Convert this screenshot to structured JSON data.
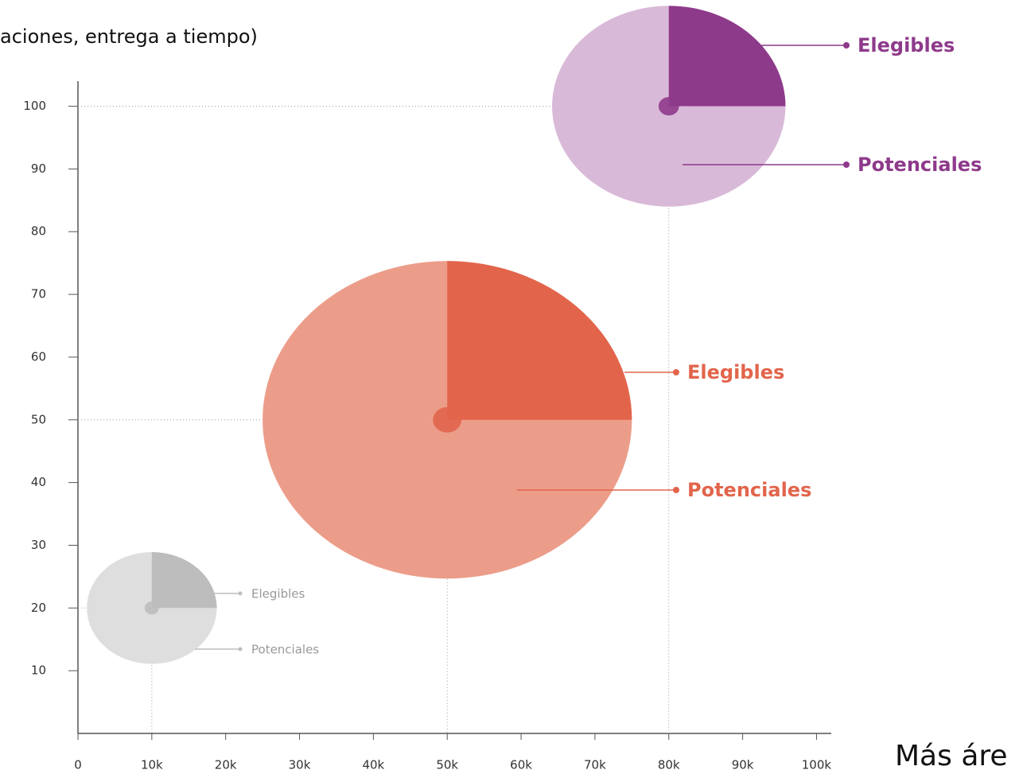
{
  "subtitle": "aciones, entrega a tiempo)",
  "footer": "Más áre",
  "chart_data": {
    "type": "bubble-pie",
    "xlim": [
      0,
      102000
    ],
    "ylim": [
      0,
      104
    ],
    "xticks": [
      0,
      {
        "value": 10000,
        "label": "10k"
      },
      {
        "value": 20000,
        "label": "20k"
      },
      {
        "value": 30000,
        "label": "30k"
      },
      {
        "value": 40000,
        "label": "40k"
      },
      {
        "value": 50000,
        "label": "50k"
      },
      {
        "value": 60000,
        "label": "60k"
      },
      {
        "value": 70000,
        "label": "70k"
      },
      {
        "value": 80000,
        "label": "80k"
      },
      {
        "value": 90000,
        "label": "90k"
      },
      {
        "value": 100000,
        "label": "100k"
      }
    ],
    "yticks": [
      10,
      20,
      30,
      40,
      50,
      60,
      70,
      80,
      90,
      100
    ],
    "bubbles": [
      {
        "x": 10000,
        "y": 20,
        "size": 8800,
        "color": "#bdbdbd",
        "light_color": "#dedede",
        "labels": [
          "Elegibles",
          "Potenciales"
        ]
      },
      {
        "x": 50000,
        "y": 50,
        "size": 25000,
        "color": "#e2654b",
        "light_color": "#ec9d8a",
        "labels": [
          "Elegibles",
          "Potenciales"
        ]
      },
      {
        "x": 80000,
        "y": 100,
        "size": 15800,
        "color": "#8e3a8b",
        "light_color": "#d9b9d8",
        "labels": [
          "Elegibles",
          "Potenciales"
        ]
      }
    ]
  }
}
